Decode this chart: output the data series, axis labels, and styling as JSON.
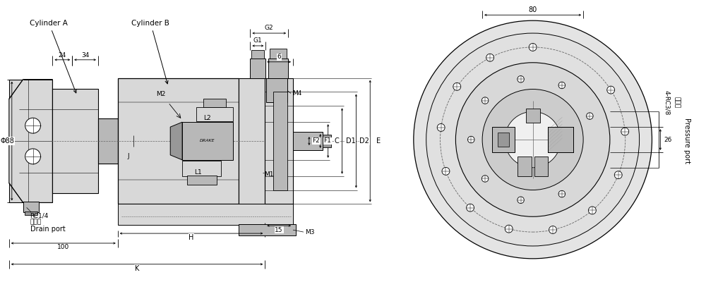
{
  "bg_color": "#ffffff",
  "labels": {
    "cylinder_a": "Cylinder A",
    "cylinder_b": "Cylinder B",
    "drain_label1": "RC1/4",
    "drain_label2": "回油孔",
    "drain_label3": "Drain port",
    "pressure_label1": "4-RC3/8",
    "pressure_label2": "进油孔",
    "pressure_label3": "Pressure port",
    "drake": "DRAKE",
    "dim_24": "24",
    "dim_34": "34",
    "dim_88": "Φ88",
    "dim_100": "100",
    "dim_K": "K",
    "dim_H": "H",
    "dim_6": "6",
    "dim_15": "15",
    "dim_80": "80",
    "dim_26": "26",
    "label_G1": "G1",
    "label_G2": "G2",
    "label_M1": "M1",
    "label_M2": "M2",
    "label_M3": "M3",
    "label_M4": "M4",
    "label_L1": "L1",
    "label_L2": "L2",
    "label_F1": "F1",
    "label_F2": "F2",
    "label_C": "C",
    "label_D1": "D1",
    "label_D2": "D2",
    "label_E": "E",
    "label_J": "J"
  },
  "colors": {
    "line": "#000000",
    "fill_light": "#d8d8d8",
    "fill_mid": "#b8b8b8",
    "fill_dark": "#989898",
    "fill_white": "#ffffff",
    "dashed": "#666666"
  }
}
